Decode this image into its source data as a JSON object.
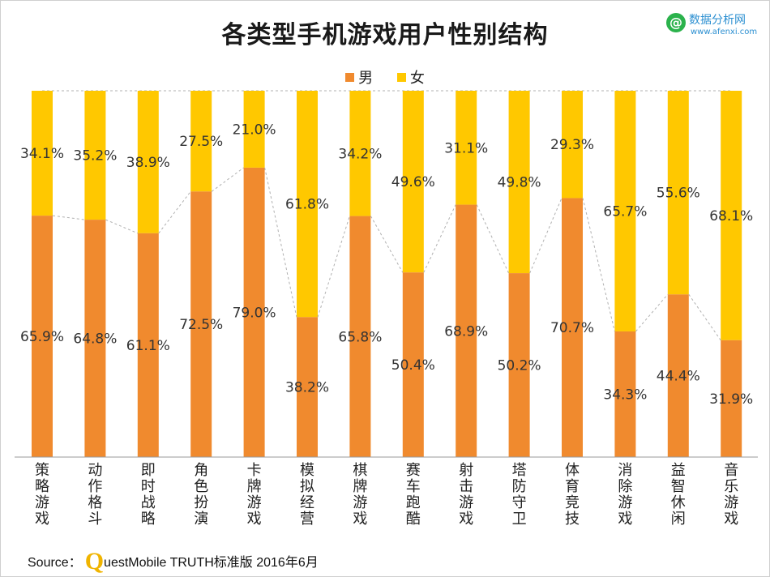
{
  "title": "各类型手机游戏用户性别结构",
  "logo": {
    "name": "数据分析网",
    "url_text": "www.afenxi.com",
    "mark": "@"
  },
  "source": {
    "label": "Source：",
    "q_letter": "Q",
    "text": "uestMobile TRUTH标准版 2016年6月"
  },
  "colors": {
    "male": "#F08A2E",
    "female": "#FFC800",
    "connector": "#b0b0b0"
  },
  "chart_data": {
    "type": "bar",
    "stacked": true,
    "percent": true,
    "title": "各类型手机游戏用户性别结构",
    "categories": [
      "策略游戏",
      "动作格斗",
      "即时战略",
      "角色扮演",
      "卡牌游戏",
      "模拟经营",
      "棋牌游戏",
      "赛车跑酷",
      "射击游戏",
      "塔防守卫",
      "体育竞技",
      "消除游戏",
      "益智休闲",
      "音乐游戏"
    ],
    "series": [
      {
        "name": "男",
        "values": [
          65.9,
          64.8,
          61.1,
          72.5,
          79.0,
          38.2,
          65.8,
          50.4,
          68.9,
          50.2,
          70.7,
          34.3,
          44.4,
          31.9
        ]
      },
      {
        "name": "女",
        "values": [
          34.1,
          35.2,
          38.9,
          27.5,
          21.0,
          61.8,
          34.2,
          49.6,
          31.1,
          49.8,
          29.3,
          65.7,
          55.6,
          68.1
        ]
      }
    ],
    "ylim": [
      0,
      100
    ],
    "legend": "top-center",
    "value_format": "{v}%"
  }
}
